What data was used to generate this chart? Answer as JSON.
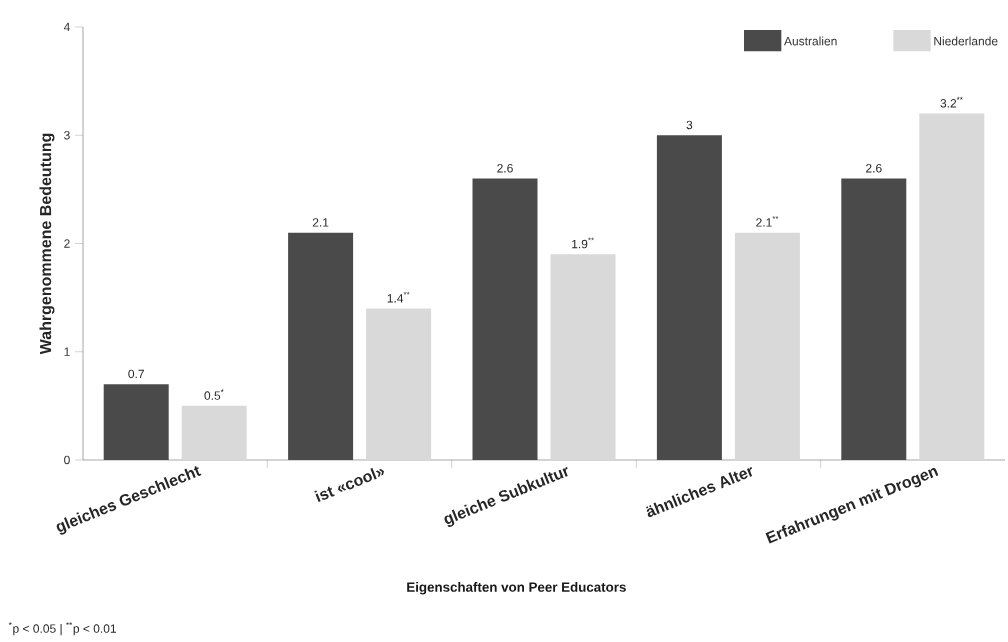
{
  "chart_data": {
    "type": "bar",
    "xlabel": "Eigenschaften von Peer Educators",
    "ylabel": "Wahrgenommene Bedeutung",
    "categories": [
      "gleiches Geschlecht",
      "ist «cool»",
      "gleiche Subkultur",
      "ähnliches Alter",
      "Erfahrungen mit Drogen"
    ],
    "series": [
      {
        "name": "Australien",
        "color": "#4a4a4a",
        "values": [
          0.7,
          2.1,
          2.6,
          3,
          2.6
        ],
        "value_labels": [
          "0.7",
          "2.1",
          "2.6",
          "3",
          "2.6"
        ]
      },
      {
        "name": "Niederlande",
        "color": "#d9d9d9",
        "values": [
          0.5,
          1.4,
          1.9,
          2.1,
          3.2
        ],
        "value_labels": [
          "0.5$^{*}$",
          "1.4$^{**}$",
          "1.9$^{**}$",
          "2.1$^{**}$",
          "3.2$^{**}$"
        ]
      }
    ],
    "ylim": [
      0,
      4
    ],
    "yticks": [
      0,
      1,
      2,
      3,
      4
    ],
    "grid": false,
    "legend": "top right",
    "annotations": [
      "$^{*}$p < 0.05 | $^{**}$p < 0.01"
    ]
  }
}
